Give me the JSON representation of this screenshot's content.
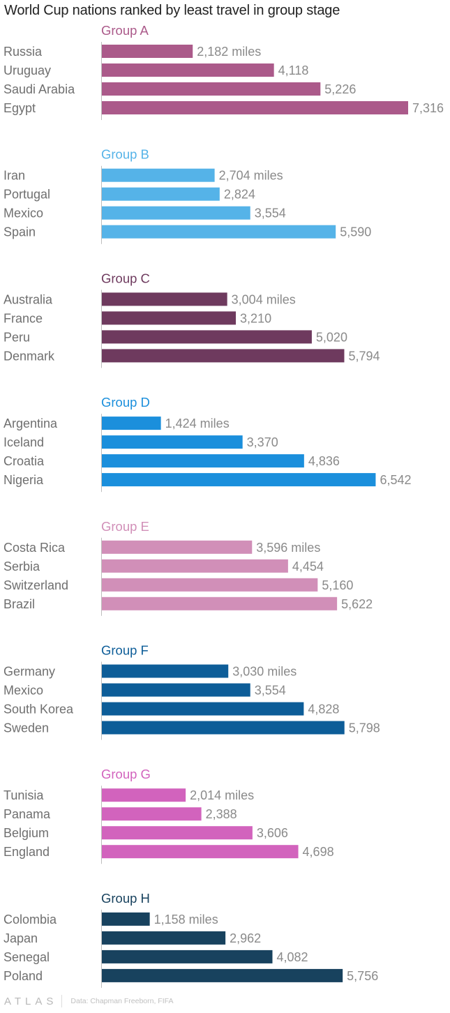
{
  "title": "World Cup nations ranked by least travel in group stage",
  "footer": {
    "logo": "ATLAS",
    "source": "Data: Chapman Freeborn, FIFA"
  },
  "chart_data": {
    "type": "bar",
    "orientation": "horizontal",
    "title": "World Cup nations ranked by least travel in group stage",
    "unit": "miles",
    "xlim": [
      0,
      7316
    ],
    "grid": false,
    "legend": "none",
    "groups": [
      {
        "name": "Group A",
        "color": "#ab5a8a",
        "categories": [
          "Russia",
          "Uruguay",
          "Saudi Arabia",
          "Egypt"
        ],
        "values": [
          2182,
          4118,
          5226,
          7316
        ],
        "labels": [
          "2,182 miles",
          "4,118",
          "5,226",
          "7,316"
        ]
      },
      {
        "name": "Group B",
        "color": "#55b3e8",
        "categories": [
          "Iran",
          "Portugal",
          "Mexico",
          "Spain"
        ],
        "values": [
          2704,
          2824,
          3554,
          5590
        ],
        "labels": [
          "2,704 miles",
          "2,824",
          "3,554",
          "5,590"
        ]
      },
      {
        "name": "Group C",
        "color": "#6e3a5e",
        "categories": [
          "Australia",
          "France",
          "Peru",
          "Denmark"
        ],
        "values": [
          3004,
          3210,
          5020,
          5794
        ],
        "labels": [
          "3,004 miles",
          "3,210",
          "5,020",
          "5,794"
        ]
      },
      {
        "name": "Group D",
        "color": "#1b8fdc",
        "categories": [
          "Argentina",
          "Iceland",
          "Croatia",
          "Nigeria"
        ],
        "values": [
          1424,
          3370,
          4836,
          6542
        ],
        "labels": [
          "1,424 miles",
          "3,370",
          "4,836",
          "6,542"
        ]
      },
      {
        "name": "Group E",
        "color": "#d18fb8",
        "categories": [
          "Costa Rica",
          "Serbia",
          "Switzerland",
          "Brazil"
        ],
        "values": [
          3596,
          4454,
          5160,
          5622
        ],
        "labels": [
          "3,596 miles",
          "4,454",
          "5,160",
          "5,622"
        ]
      },
      {
        "name": "Group F",
        "color": "#0d5d98",
        "categories": [
          "Germany",
          "Mexico",
          "South Korea",
          "Sweden"
        ],
        "values": [
          3030,
          3554,
          4828,
          5798
        ],
        "labels": [
          "3,030 miles",
          "3,554",
          "4,828",
          "5,798"
        ]
      },
      {
        "name": "Group G",
        "color": "#d263bd",
        "categories": [
          "Tunisia",
          "Panama",
          "Belgium",
          "England"
        ],
        "values": [
          2014,
          2388,
          3606,
          4698
        ],
        "labels": [
          "2,014 miles",
          "2,388",
          "3,606",
          "4,698"
        ]
      },
      {
        "name": "Group H",
        "color": "#18425e",
        "categories": [
          "Colombia",
          "Japan",
          "Senegal",
          "Poland"
        ],
        "values": [
          1158,
          2962,
          4082,
          5756
        ],
        "labels": [
          "1,158 miles",
          "2,962",
          "4,082",
          "5,756"
        ]
      }
    ]
  }
}
